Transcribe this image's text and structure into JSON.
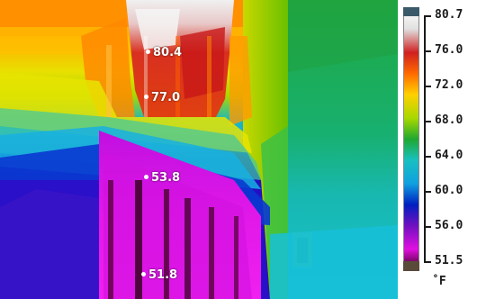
{
  "spot_readings": [
    {
      "value": "80.4"
    },
    {
      "value": "77.0"
    },
    {
      "value": "53.8"
    },
    {
      "value": "51.8"
    }
  ],
  "temperature_scale": {
    "max_label": "80.7",
    "min_label": "51.5",
    "tick_labels": [
      "80.7",
      "76.0",
      "72.0",
      "68.0",
      "64.0",
      "60.0",
      "56.0",
      "51.5"
    ],
    "unit": "˚F",
    "palette": [
      "#ffffff",
      "#e0e0e0",
      "#d02020",
      "#ff6a00",
      "#ffd000",
      "#a8d800",
      "#20a830",
      "#18c0c0",
      "#10a0e0",
      "#0020c0",
      "#7010c0",
      "#e010e0",
      "#300010"
    ]
  }
}
